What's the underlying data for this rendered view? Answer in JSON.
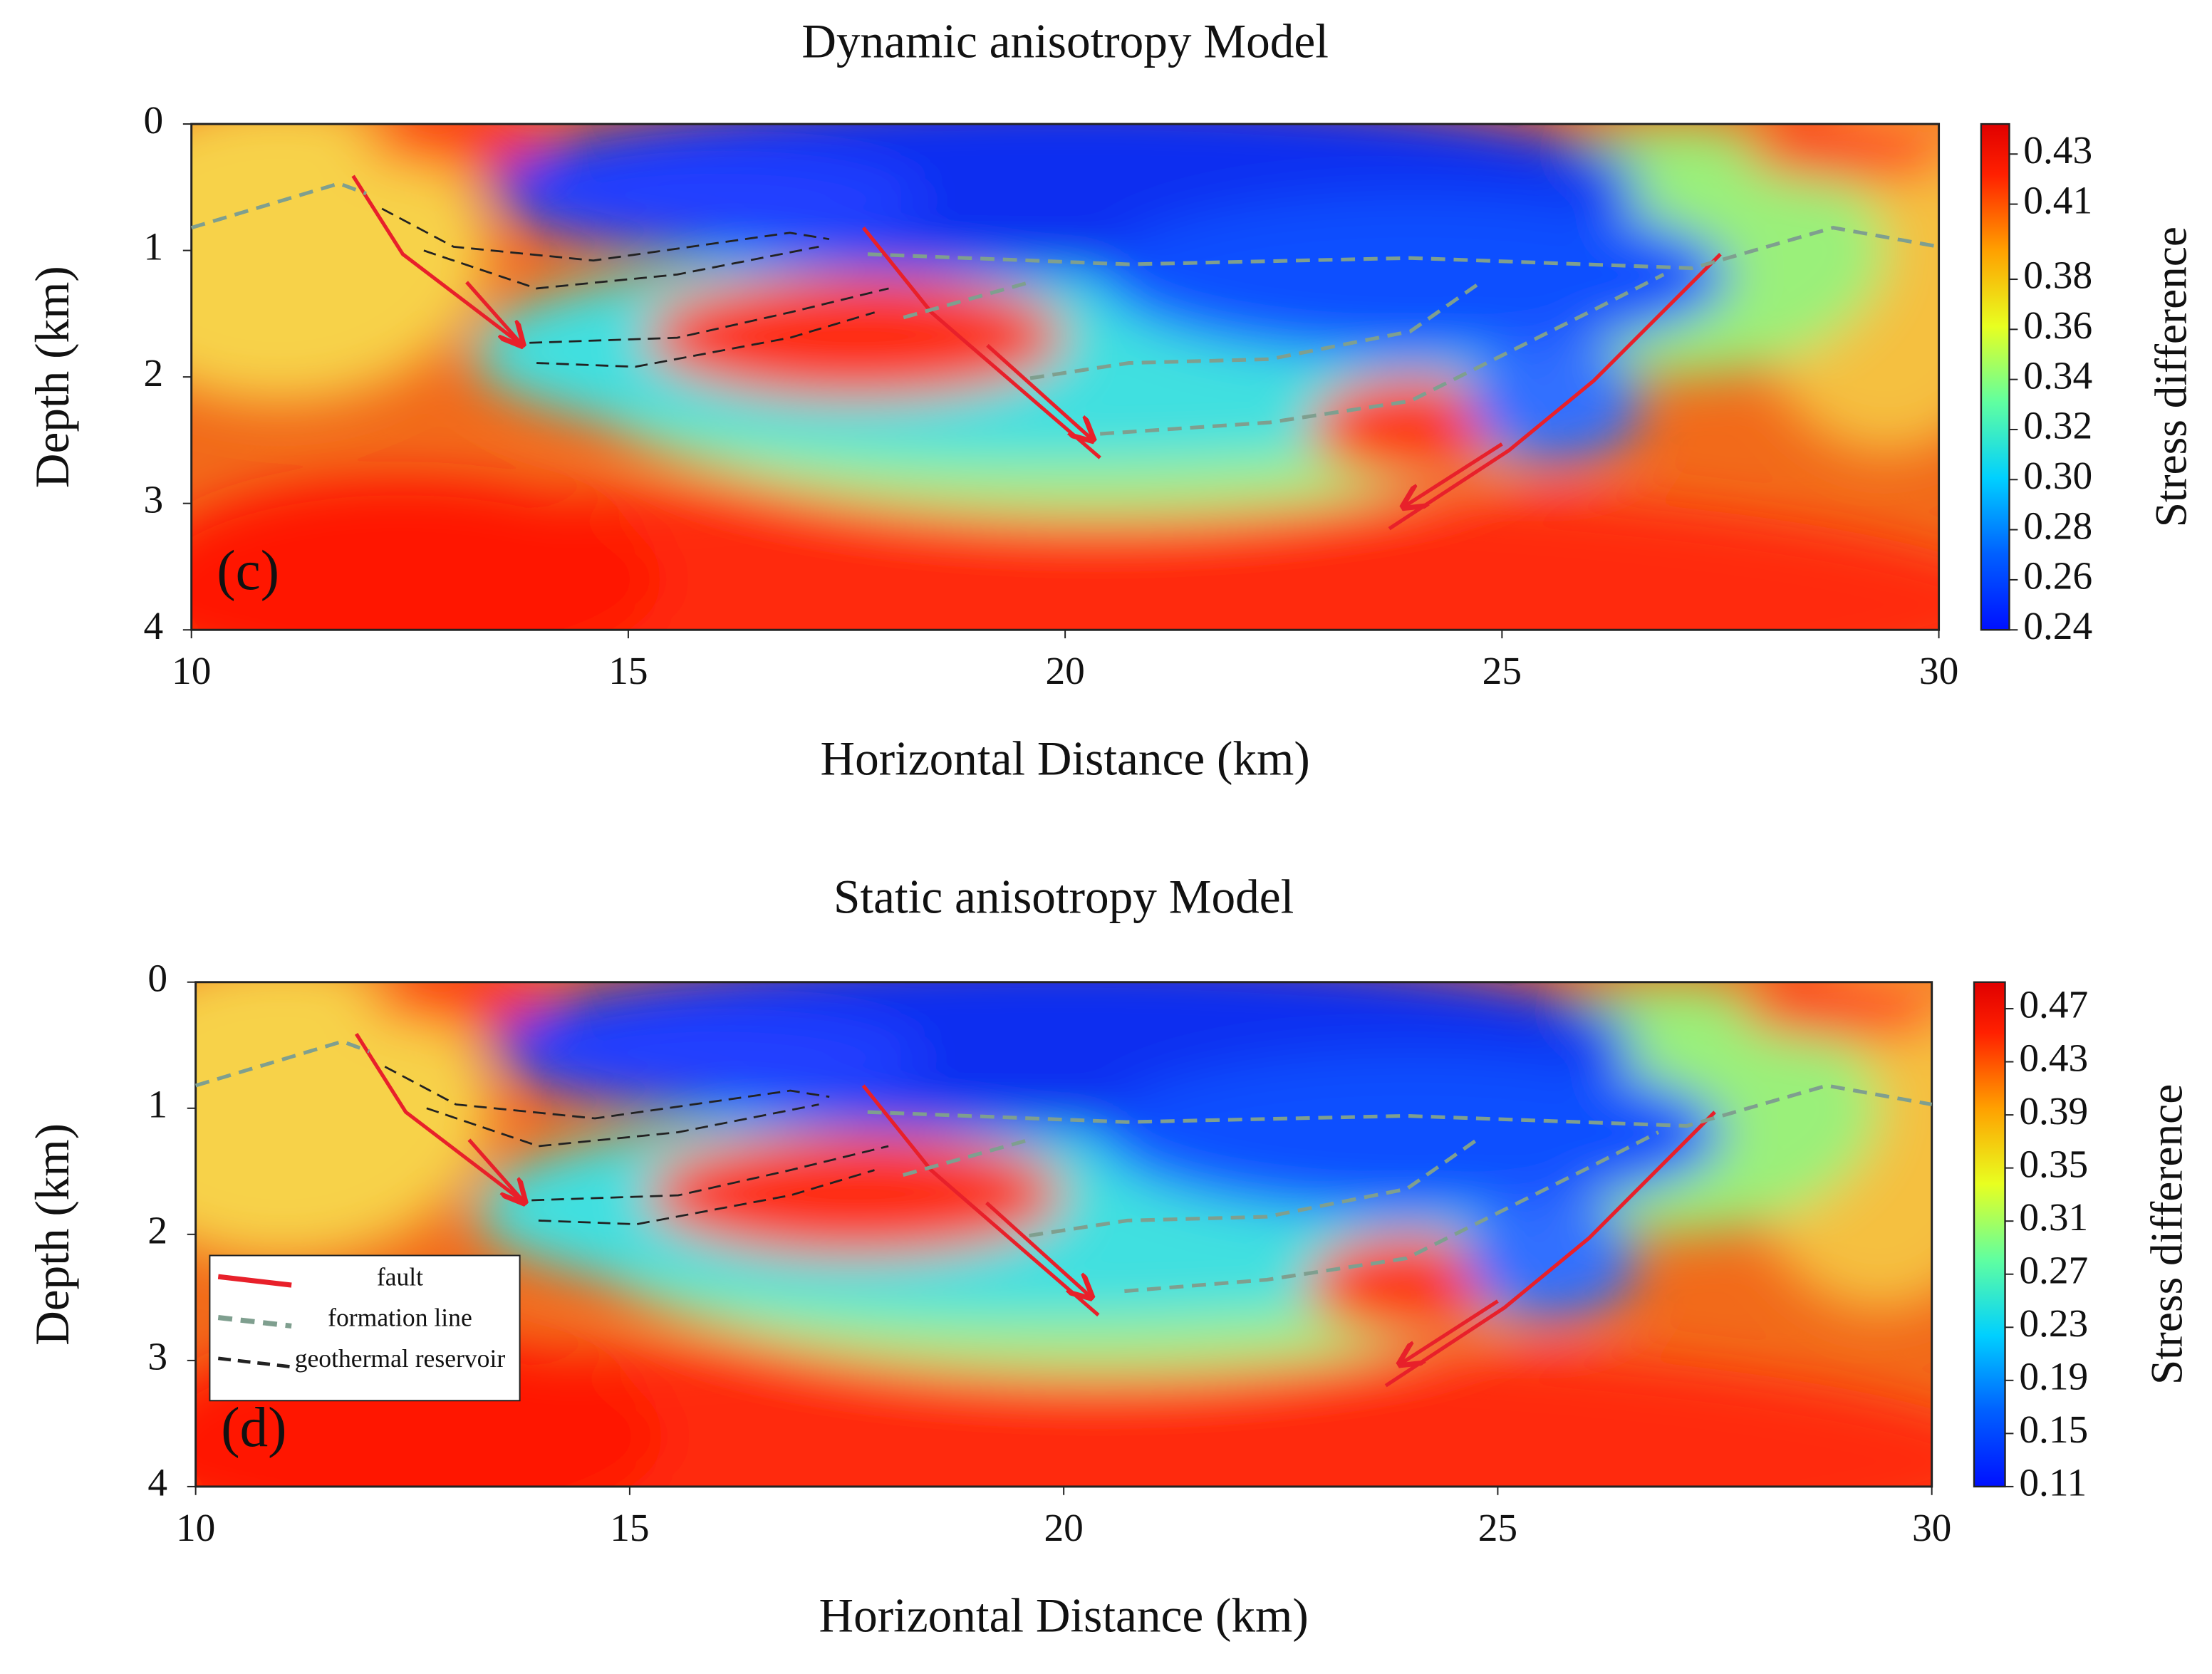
{
  "chart_data": [
    {
      "type": "heatmap",
      "title": "Dynamic anisotropy Model",
      "panel_label": "(c)",
      "xlabel": "Horizontal Distance (km)",
      "ylabel": "Depth (km)",
      "xlim": [
        10,
        30
      ],
      "xticks": [
        10,
        15,
        20,
        25,
        30
      ],
      "ylim": [
        4,
        0
      ],
      "yticks": [
        0,
        1,
        2,
        3,
        4
      ],
      "colorbar": {
        "label": "Stress difference",
        "colormap": "jet",
        "lim": [
          0.24,
          0.442
        ],
        "ticks": [
          0.24,
          0.26,
          0.28,
          {
            "value": 0.3,
            "label": "0.30"
          },
          0.32,
          0.34,
          0.36,
          0.38,
          0.41,
          0.43
        ]
      },
      "series": [
        {
          "color": "#e8202a",
          "style": "solid",
          "lines": [
            {
              "x": [
                11.85,
                12.42,
                13.79
              ],
              "y": [
                0.41,
                1.03,
                1.75
              ]
            },
            {
              "x": [
                13.15,
                13.79
              ],
              "y": [
                1.25,
                1.75
              ],
              "arrow": true
            },
            {
              "x": [
                17.69,
                18.47,
                20.4
              ],
              "y": [
                0.82,
                1.49,
                2.64
              ]
            },
            {
              "x": [
                19.11,
                20.32
              ],
              "y": [
                1.75,
                2.5
              ],
              "arrow": true
            },
            {
              "x": [
                27.5,
                26.05,
                25.08,
                23.71
              ],
              "y": [
                1.03,
                2.03,
                2.58,
                3.2
              ]
            },
            {
              "x": [
                25.0,
                23.87
              ],
              "y": [
                2.53,
                3.03
              ],
              "arrow": true
            }
          ]
        },
        {
          "color": "#7f9f8f",
          "style": "dashed",
          "lines": [
            {
              "x": [
                10,
                11.69,
                12.0
              ],
              "y": [
                0.82,
                0.47,
                0.55
              ]
            },
            {
              "x": [
                17.74,
                20.73,
                23.95,
                27.18,
                28.79,
                30
              ],
              "y": [
                1.03,
                1.11,
                1.06,
                1.14,
                0.82,
                0.97
              ]
            },
            {
              "x": [
                18.15,
                19.6
              ],
              "y": [
                1.53,
                1.25
              ]
            },
            {
              "x": [
                19.6,
                20.73,
                22.34,
                23.95,
                24.76
              ],
              "y": [
                2.01,
                1.89,
                1.86,
                1.64,
                1.25
              ]
            },
            {
              "x": [
                20.4,
                22.34,
                23.95,
                26.05,
                26.85
              ],
              "y": [
                2.45,
                2.36,
                2.19,
                1.47,
                1.19
              ]
            }
          ]
        },
        {
          "color": "#222222",
          "style": "thin-dashed",
          "lines": [
            {
              "x": [
                12.18,
                13.0,
                14.6,
                16.85,
                17.3
              ],
              "y": [
                0.67,
                0.97,
                1.08,
                0.86,
                0.91
              ]
            },
            {
              "x": [
                12.66,
                13.95,
                15.56,
                17.18
              ],
              "y": [
                1.0,
                1.3,
                1.19,
                0.97
              ]
            },
            {
              "x": [
                13.87,
                15.56,
                16.85,
                17.98
              ],
              "y": [
                1.73,
                1.69,
                1.49,
                1.3
              ]
            },
            {
              "x": [
                13.95,
                15.08,
                16.85,
                17.82
              ],
              "y": [
                1.89,
                1.92,
                1.69,
                1.49
              ]
            }
          ]
        }
      ]
    },
    {
      "type": "heatmap",
      "title": "Static anisotropy Model",
      "panel_label": "(d)",
      "xlabel": "Horizontal Distance (km)",
      "ylabel": "Depth (km)",
      "xlim": [
        10,
        30
      ],
      "xticks": [
        10,
        15,
        20,
        25,
        30
      ],
      "ylim": [
        4,
        0
      ],
      "yticks": [
        0,
        1,
        2,
        3,
        4
      ],
      "colorbar": {
        "label": "Stress difference",
        "colormap": "jet",
        "lim": [
          0.11,
          0.49
        ],
        "ticks": [
          0.11,
          0.15,
          0.19,
          0.23,
          0.27,
          0.31,
          0.35,
          0.39,
          0.43,
          0.47
        ]
      },
      "legend": "lower left",
      "series": [
        {
          "name": "fault",
          "color": "#e8202a",
          "style": "solid",
          "lines": [
            {
              "x": [
                11.85,
                12.42,
                13.79
              ],
              "y": [
                0.41,
                1.03,
                1.75
              ]
            },
            {
              "x": [
                13.15,
                13.79
              ],
              "y": [
                1.25,
                1.75
              ],
              "arrow": true
            },
            {
              "x": [
                17.69,
                18.47,
                20.4
              ],
              "y": [
                0.82,
                1.49,
                2.64
              ]
            },
            {
              "x": [
                19.11,
                20.32
              ],
              "y": [
                1.75,
                2.5
              ],
              "arrow": true
            },
            {
              "x": [
                27.5,
                26.05,
                25.08,
                23.71
              ],
              "y": [
                1.03,
                2.03,
                2.58,
                3.2
              ]
            },
            {
              "x": [
                25.0,
                23.87
              ],
              "y": [
                2.53,
                3.03
              ],
              "arrow": true
            }
          ]
        },
        {
          "name": "formation line",
          "color": "#7f9f8f",
          "style": "dashed",
          "lines": [
            {
              "x": [
                10,
                11.69,
                12.0
              ],
              "y": [
                0.82,
                0.47,
                0.55
              ]
            },
            {
              "x": [
                17.74,
                20.73,
                23.95,
                27.18,
                28.79,
                30
              ],
              "y": [
                1.03,
                1.11,
                1.06,
                1.14,
                0.82,
                0.97
              ]
            },
            {
              "x": [
                18.15,
                19.6
              ],
              "y": [
                1.53,
                1.25
              ]
            },
            {
              "x": [
                19.6,
                20.73,
                22.34,
                23.95,
                24.76
              ],
              "y": [
                2.01,
                1.89,
                1.86,
                1.64,
                1.25
              ]
            },
            {
              "x": [
                20.7,
                22.34,
                23.95,
                26.05,
                26.85
              ],
              "y": [
                2.45,
                2.36,
                2.19,
                1.47,
                1.19
              ]
            }
          ]
        },
        {
          "name": "geothermal reservoir",
          "color": "#222222",
          "style": "thin-dashed",
          "lines": [
            {
              "x": [
                12.18,
                13.0,
                14.6,
                16.85,
                17.3
              ],
              "y": [
                0.67,
                0.97,
                1.08,
                0.86,
                0.91
              ]
            },
            {
              "x": [
                12.66,
                13.95,
                15.56,
                17.18
              ],
              "y": [
                1.0,
                1.3,
                1.19,
                0.97
              ]
            },
            {
              "x": [
                13.87,
                15.56,
                16.85,
                17.98
              ],
              "y": [
                1.73,
                1.69,
                1.49,
                1.3
              ]
            },
            {
              "x": [
                13.95,
                15.08,
                16.85,
                17.82
              ],
              "y": [
                1.89,
                1.92,
                1.69,
                1.49
              ]
            }
          ]
        }
      ]
    }
  ]
}
